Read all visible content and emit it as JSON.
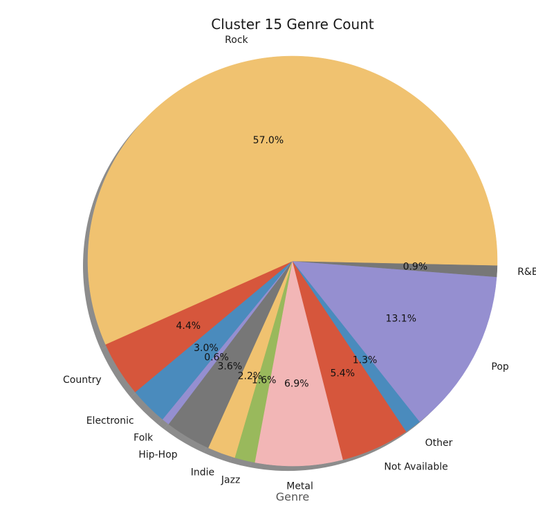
{
  "chart_data": {
    "type": "pie",
    "title": "Cluster 15 Genre Count",
    "xlabel": "Genre",
    "ylabel": "",
    "shadow": true,
    "slices": [
      {
        "label": "Country",
        "value": 4.4,
        "pct_label": "4.4%",
        "color": "#d6563c"
      },
      {
        "label": "Electronic",
        "value": 3.0,
        "pct_label": "3.0%",
        "color": "#4a8bbd"
      },
      {
        "label": "Folk",
        "value": 0.6,
        "pct_label": "0.6%",
        "color": "#958fd0"
      },
      {
        "label": "Hip-Hop",
        "value": 3.6,
        "pct_label": "3.6%",
        "color": "#777777"
      },
      {
        "label": "Indie",
        "value": 2.2,
        "pct_label": "2.2%",
        "color": "#f0c270"
      },
      {
        "label": "Jazz",
        "value": 1.6,
        "pct_label": "1.6%",
        "color": "#99b95c"
      },
      {
        "label": "Metal",
        "value": 6.9,
        "pct_label": "6.9%",
        "color": "#f2b6b6"
      },
      {
        "label": "Not Available",
        "value": 5.4,
        "pct_label": "5.4%",
        "color": "#d6563c"
      },
      {
        "label": "Other",
        "value": 1.3,
        "pct_label": "1.3%",
        "color": "#4a8bbd"
      },
      {
        "label": "Pop",
        "value": 13.1,
        "pct_label": "13.1%",
        "color": "#958fd0"
      },
      {
        "label": "R&B",
        "value": 0.9,
        "pct_label": "0.9%",
        "color": "#777777"
      },
      {
        "label": "Rock",
        "value": 57.0,
        "pct_label": "57.0%",
        "color": "#f0c270"
      }
    ]
  }
}
